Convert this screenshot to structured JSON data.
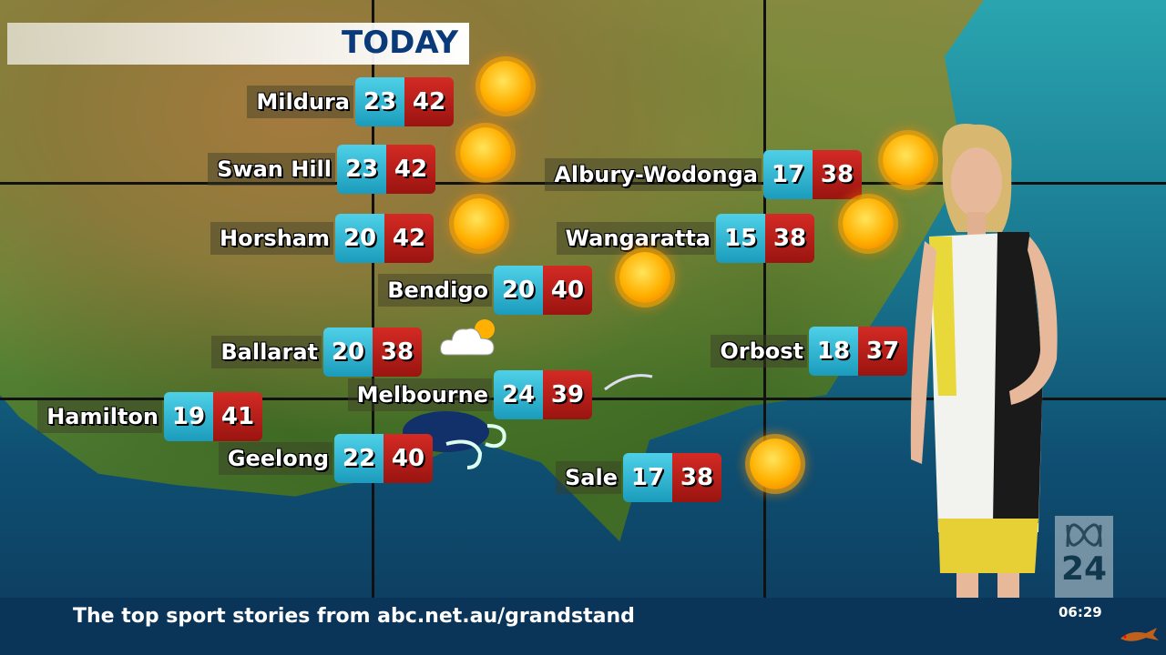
{
  "header": {
    "title": "TODAY"
  },
  "cities": [
    {
      "name": "Mildura",
      "min": "23",
      "max": "42",
      "icon": "sun-icon"
    },
    {
      "name": "Swan Hill",
      "min": "23",
      "max": "42",
      "icon": "sun-icon"
    },
    {
      "name": "Horsham",
      "min": "20",
      "max": "42",
      "icon": "sun-icon"
    },
    {
      "name": "Bendigo",
      "min": "20",
      "max": "40",
      "icon": "sun-icon"
    },
    {
      "name": "Ballarat",
      "min": "20",
      "max": "38",
      "icon": "partly-cloudy-icon"
    },
    {
      "name": "Melbourne",
      "min": "24",
      "max": "39",
      "icon": "wind-icon"
    },
    {
      "name": "Hamilton",
      "min": "19",
      "max": "41",
      "icon": "none"
    },
    {
      "name": "Geelong",
      "min": "22",
      "max": "40",
      "icon": "wind-icon"
    },
    {
      "name": "Sale",
      "min": "17",
      "max": "38",
      "icon": "sun-icon"
    },
    {
      "name": "Albury-Wodonga",
      "min": "17",
      "max": "38",
      "icon": "sun-icon"
    },
    {
      "name": "Wangaratta",
      "min": "15",
      "max": "38",
      "icon": "sun-icon"
    },
    {
      "name": "Orbost",
      "min": "18",
      "max": "37",
      "icon": "none"
    }
  ],
  "colors": {
    "min_box": "#2bb5d4",
    "max_box": "#c01c18",
    "title": "#0a3a7a",
    "ticker": "#0a3458"
  },
  "ticker": {
    "text": "The top sport stories from abc.net.au/grandstand"
  },
  "channel": {
    "logo_number": "24",
    "time": "06:29"
  }
}
